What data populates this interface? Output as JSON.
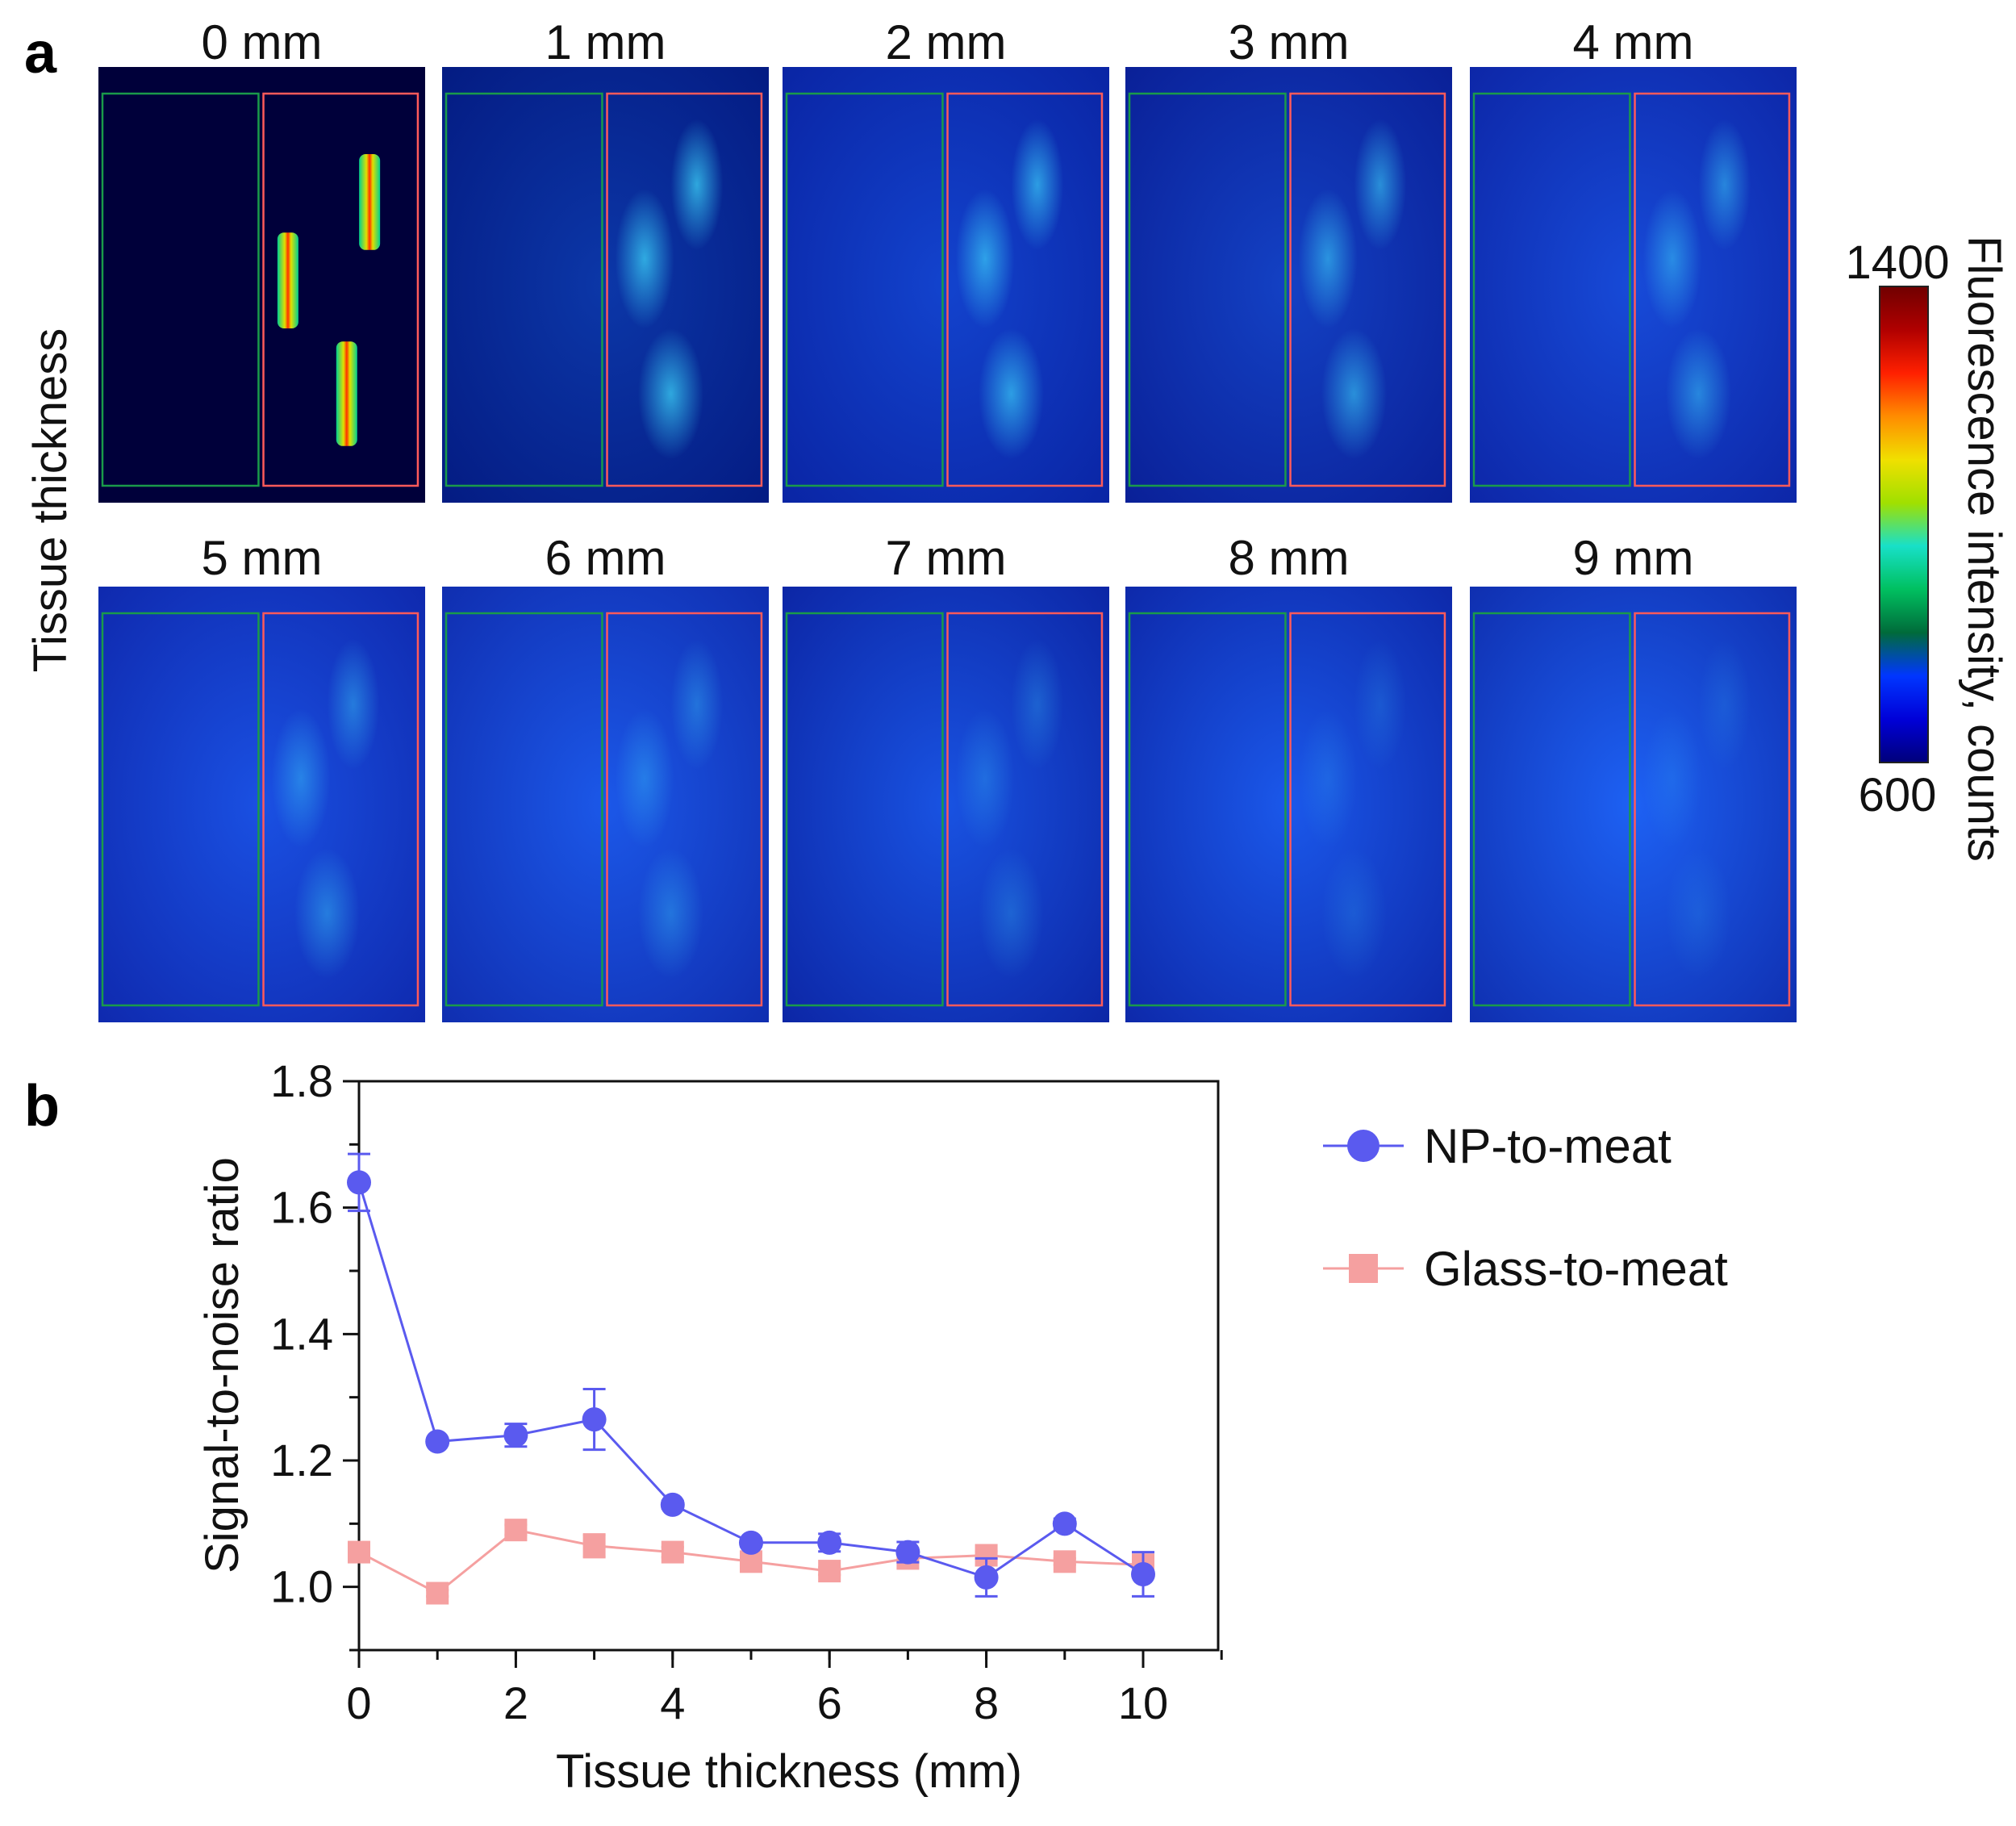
{
  "panel_a": {
    "letter": "a",
    "row_label": "Tissue thickness",
    "tiles": [
      "0 mm",
      "1 mm",
      "2 mm",
      "3 mm",
      "4 mm",
      "5 mm",
      "6 mm",
      "7 mm",
      "8 mm",
      "9 mm"
    ],
    "colorbar": {
      "title": "Fluorescence intensity, counts",
      "max_label": "1400",
      "min_label": "600",
      "colors": [
        "#00007a",
        "#0000d8",
        "#0036ff",
        "#006b3a",
        "#00c060",
        "#18e0c8",
        "#a0e000",
        "#f0e000",
        "#ff8c00",
        "#ff2000",
        "#b00000",
        "#700000"
      ]
    },
    "roi_colors": {
      "reference": "#1a9a4a",
      "sample": "#ff5a5a"
    }
  },
  "panel_b": {
    "letter": "b"
  },
  "chart_data": {
    "type": "line",
    "xlabel": "Tissue thickness (mm)",
    "ylabel": "Signal-to-noise ratio",
    "xlim": [
      0,
      11
    ],
    "ylim": [
      0.9,
      1.8
    ],
    "xticks": [
      "0",
      "2",
      "4",
      "6",
      "8",
      "10"
    ],
    "yticks": [
      "1.0",
      "1.2",
      "1.4",
      "1.6",
      "1.8"
    ],
    "legend_position": "right",
    "series": [
      {
        "name": "NP-to-meat",
        "color": "#5a5aef",
        "marker": "circle",
        "x": [
          0,
          1,
          2,
          3,
          4,
          5,
          6,
          7,
          8,
          9,
          10
        ],
        "y": [
          1.64,
          1.23,
          1.24,
          1.265,
          1.13,
          1.07,
          1.07,
          1.055,
          1.015,
          1.1,
          1.02
        ],
        "err": [
          0.045,
          0.005,
          0.018,
          0.048,
          0.006,
          0.006,
          0.014,
          0.016,
          0.03,
          0.008,
          0.035
        ]
      },
      {
        "name": "Glass-to-meat",
        "color": "#f5a0a0",
        "marker": "square",
        "x": [
          0,
          1,
          2,
          3,
          4,
          5,
          6,
          7,
          8,
          9,
          10
        ],
        "y": [
          1.055,
          0.99,
          1.09,
          1.065,
          1.055,
          1.04,
          1.025,
          1.045,
          1.05,
          1.04,
          1.035
        ],
        "err": [
          0.006,
          0.005,
          0.008,
          0.018,
          0.008,
          0.006,
          0.006,
          0.006,
          0.006,
          0.005,
          0.006
        ]
      }
    ]
  }
}
